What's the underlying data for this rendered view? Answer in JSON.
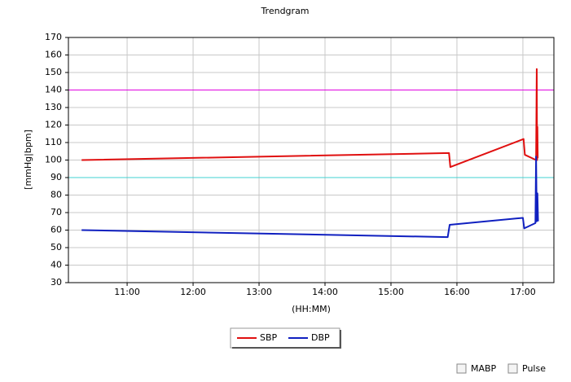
{
  "chart_data": {
    "type": "line",
    "title": "Trendgram",
    "x_label": "(HH:MM)",
    "y_label": "[mmHg|bpm]",
    "xlim": [
      10.11,
      17.47
    ],
    "xticks": [
      {
        "value": 11,
        "label": "11:00"
      },
      {
        "value": 12,
        "label": "12:00"
      },
      {
        "value": 13,
        "label": "13:00"
      },
      {
        "value": 14,
        "label": "14:00"
      },
      {
        "value": 15,
        "label": "15:00"
      },
      {
        "value": 16,
        "label": "16:00"
      },
      {
        "value": 17,
        "label": "17:00"
      }
    ],
    "ylim": [
      30,
      170
    ],
    "yticks": [
      30,
      40,
      50,
      60,
      70,
      80,
      90,
      100,
      110,
      120,
      130,
      140,
      150,
      160,
      170
    ],
    "grid": true,
    "reference_lines": [
      {
        "value": 140,
        "color": "#e000e0"
      },
      {
        "value": 90,
        "color": "#40d0d0"
      }
    ],
    "series": [
      {
        "name": "SBP",
        "color": "#e01010",
        "x": [
          10.31,
          15.88,
          15.9,
          17.01,
          17.03,
          17.2,
          17.21,
          17.215,
          17.22,
          17.225
        ],
        "values": [
          100,
          104,
          96,
          112,
          103,
          100,
          152,
          100,
          119,
          101
        ]
      },
      {
        "name": "DBP",
        "color": "#1020c0",
        "x": [
          10.31,
          15.86,
          15.89,
          17.0,
          17.02,
          17.19,
          17.2,
          17.21,
          17.22,
          17.23
        ],
        "values": [
          60,
          56,
          63,
          67,
          61,
          64,
          102,
          65,
          81,
          65
        ]
      }
    ]
  },
  "checkboxes": [
    "MABP",
    "Pulse"
  ]
}
